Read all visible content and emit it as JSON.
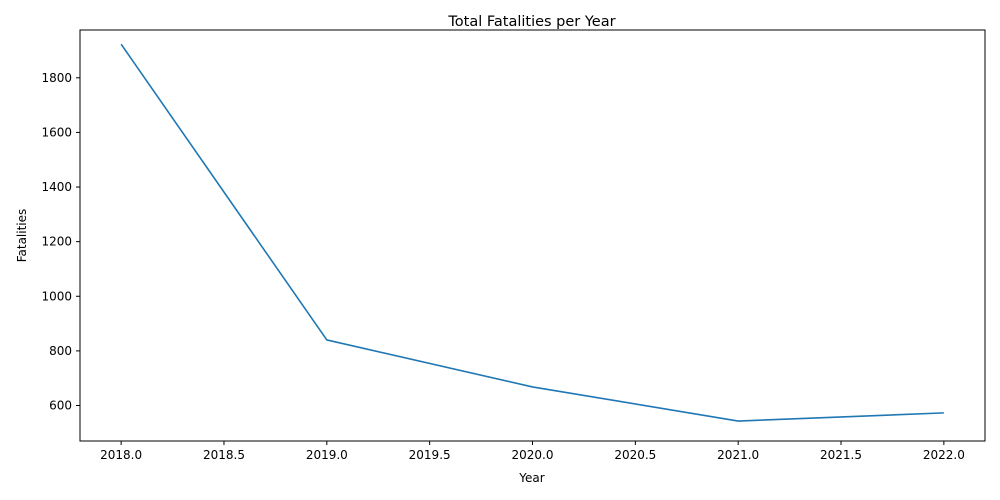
{
  "chart_data": {
    "type": "line",
    "title": "Total Fatalities per Year",
    "xlabel": "Year",
    "ylabel": "Fatalities",
    "x": [
      2018,
      2019,
      2020,
      2021,
      2022
    ],
    "series": [
      {
        "values": [
          1923,
          840,
          668,
          543,
          573
        ],
        "color": "#1f77b4"
      }
    ],
    "xlim": [
      2017.8,
      2022.2
    ],
    "ylim": [
      470,
      1975
    ],
    "xticks": [
      2018.0,
      2018.5,
      2019.0,
      2019.5,
      2020.0,
      2020.5,
      2021.0,
      2021.5,
      2022.0
    ],
    "xtick_labels": [
      "2018.0",
      "2018.5",
      "2019.0",
      "2019.5",
      "2020.0",
      "2020.5",
      "2021.0",
      "2021.5",
      "2022.0"
    ],
    "yticks": [
      600,
      800,
      1000,
      1200,
      1400,
      1600,
      1800
    ],
    "ytick_labels": [
      "600",
      "800",
      "1000",
      "1200",
      "1400",
      "1600",
      "1800"
    ],
    "grid": false,
    "legend": "none"
  }
}
